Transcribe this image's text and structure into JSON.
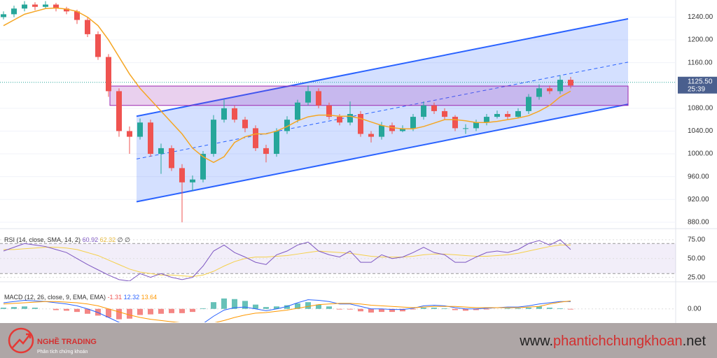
{
  "chart_data": {
    "type": "candlestick",
    "ylim": [
      870,
      1270
    ],
    "yticks": [
      {
        "value": 880,
        "label": "880.00"
      },
      {
        "value": 920,
        "label": "920.00"
      },
      {
        "value": 960,
        "label": "960.00"
      },
      {
        "value": 1000,
        "label": "1000.00"
      },
      {
        "value": 1040,
        "label": "1040.00"
      },
      {
        "value": 1080,
        "label": "1080.00"
      },
      {
        "value": 1160,
        "label": "1160.00"
      },
      {
        "value": 1200,
        "label": "1200.00"
      },
      {
        "value": 1240,
        "label": "1240.00"
      }
    ],
    "colors": {
      "up": "#26a69a",
      "down": "#ef5350"
    },
    "open": [
      1240,
      1245,
      1255,
      1262,
      1258,
      1262,
      1255,
      1250,
      1235,
      1210,
      1170,
      1110,
      1040,
      1030,
      1055,
      1000,
      1010,
      975,
      950,
      955,
      1000,
      1060,
      1080,
      1060,
      1045,
      1010,
      1000,
      1040,
      1060,
      1090,
      1110,
      1085,
      1065,
      1055,
      1070,
      1035,
      1030,
      1050,
      1040,
      1045,
      1065,
      1085,
      1075,
      1065,
      1045,
      1045,
      1055,
      1065,
      1070,
      1065,
      1075,
      1100,
      1115,
      1110,
      1130
    ],
    "high": [
      1250,
      1260,
      1268,
      1266,
      1268,
      1265,
      1258,
      1253,
      1240,
      1215,
      1175,
      1115,
      1048,
      1062,
      1060,
      1018,
      1015,
      982,
      962,
      1005,
      1068,
      1095,
      1085,
      1065,
      1050,
      1016,
      1045,
      1066,
      1095,
      1120,
      1115,
      1090,
      1070,
      1092,
      1075,
      1040,
      1056,
      1055,
      1050,
      1070,
      1092,
      1090,
      1080,
      1068,
      1052,
      1060,
      1070,
      1076,
      1075,
      1080,
      1105,
      1122,
      1120,
      1138,
      1135
    ],
    "low": [
      1236,
      1240,
      1250,
      1252,
      1254,
      1250,
      1245,
      1228,
      1205,
      1165,
      1100,
      1030,
      1000,
      1025,
      995,
      965,
      970,
      880,
      935,
      950,
      995,
      1055,
      1055,
      1038,
      1005,
      985,
      995,
      1035,
      1055,
      1085,
      1080,
      1060,
      1050,
      1050,
      1030,
      1020,
      1025,
      1035,
      1038,
      1040,
      1060,
      1070,
      1060,
      1040,
      1035,
      1040,
      1050,
      1062,
      1060,
      1062,
      1070,
      1095,
      1105,
      1105,
      1115
    ],
    "close": [
      1245,
      1255,
      1262,
      1258,
      1262,
      1255,
      1250,
      1235,
      1210,
      1170,
      1110,
      1040,
      1030,
      1055,
      1000,
      1010,
      975,
      950,
      955,
      1000,
      1060,
      1080,
      1060,
      1045,
      1010,
      1000,
      1040,
      1060,
      1090,
      1110,
      1085,
      1065,
      1055,
      1070,
      1035,
      1030,
      1050,
      1040,
      1045,
      1065,
      1085,
      1075,
      1065,
      1045,
      1045,
      1055,
      1065,
      1070,
      1065,
      1075,
      1100,
      1115,
      1110,
      1130,
      1120
    ],
    "ma": {
      "color": "#f5a623",
      "values": [
        1225,
        1235,
        1245,
        1250,
        1255,
        1256,
        1254,
        1250,
        1240,
        1225,
        1200,
        1170,
        1140,
        1115,
        1095,
        1075,
        1055,
        1035,
        1010,
        995,
        985,
        995,
        1020,
        1030,
        1035,
        1035,
        1040,
        1048,
        1058,
        1065,
        1068,
        1068,
        1066,
        1066,
        1062,
        1056,
        1050,
        1046,
        1044,
        1044,
        1048,
        1054,
        1060,
        1060,
        1058,
        1055,
        1055,
        1057,
        1060,
        1063,
        1067,
        1075,
        1085,
        1100,
        1110
      ]
    },
    "channel": {
      "upper": [
        1066,
        1237
      ],
      "middle": [
        991,
        1161
      ],
      "lower": [
        916,
        1087
      ],
      "color": "#2962ff"
    },
    "zone": [
      1085,
      1119
    ],
    "last_price": {
      "value": 1125.5,
      "label": "1125.50",
      "countdown": "25:39"
    },
    "rsi": {
      "title": "RSI (14, close, SMA, 14, 2)",
      "readouts": [
        60.92,
        62.32,
        "∅",
        "∅"
      ],
      "ylim": [
        20,
        87
      ],
      "yticks": [
        {
          "value": 75,
          "label": "75.00"
        },
        {
          "value": 50,
          "label": "50.00"
        },
        {
          "value": 25,
          "label": "25.00"
        }
      ],
      "band": [
        30,
        70
      ],
      "color": "#7e57c2",
      "sma_color": "#f5d04a",
      "values": [
        60,
        65,
        70,
        68,
        66,
        62,
        58,
        50,
        42,
        35,
        28,
        22,
        20,
        30,
        25,
        30,
        25,
        22,
        25,
        40,
        60,
        68,
        58,
        52,
        45,
        42,
        55,
        60,
        68,
        72,
        60,
        55,
        52,
        60,
        45,
        45,
        55,
        50,
        52,
        58,
        65,
        58,
        55,
        45,
        45,
        52,
        58,
        60,
        58,
        62,
        70,
        74,
        68,
        75,
        62
      ],
      "sma": [
        62,
        62,
        63,
        64,
        65,
        65,
        64,
        62,
        58,
        54,
        48,
        42,
        36,
        32,
        30,
        28,
        28,
        27,
        26,
        28,
        33,
        40,
        46,
        50,
        52,
        52,
        53,
        54,
        56,
        58,
        60,
        59,
        58,
        57,
        55,
        53,
        52,
        52,
        52,
        53,
        55,
        56,
        56,
        55,
        54,
        53,
        53,
        54,
        55,
        57,
        60,
        63,
        66,
        68,
        68
      ]
    },
    "macd": {
      "title": "MACD (12, 26, close, 9, EMA, EMA)",
      "readouts": [
        -1.31,
        12.32,
        13.64
      ],
      "ylim": [
        -22,
        42
      ],
      "yticks": [
        {
          "value": 0,
          "label": "0.00"
        }
      ],
      "color": "#2962ff",
      "signal_color": "#ff9800",
      "macd": [
        10,
        12,
        14,
        13,
        12,
        10,
        8,
        5,
        0,
        -6,
        -14,
        -22,
        -26,
        -24,
        -26,
        -27,
        -28,
        -30,
        -30,
        -24,
        -12,
        -2,
        2,
        3,
        0,
        -3,
        0,
        4,
        10,
        15,
        14,
        12,
        8,
        8,
        4,
        0,
        0,
        -1,
        -1,
        1,
        5,
        6,
        5,
        2,
        0,
        0,
        1,
        2,
        3,
        3,
        5,
        8,
        10,
        12,
        12
      ],
      "signal": [
        8,
        9,
        10,
        11,
        12,
        12,
        11,
        10,
        8,
        5,
        0,
        -5,
        -10,
        -14,
        -17,
        -19,
        -21,
        -23,
        -25,
        -25,
        -23,
        -19,
        -14,
        -10,
        -7,
        -6,
        -4,
        -2,
        1,
        4,
        7,
        8,
        9,
        9,
        8,
        6,
        5,
        4,
        3,
        2,
        3,
        4,
        4,
        4,
        3,
        2,
        2,
        2,
        2,
        2,
        3,
        4,
        8,
        11,
        13
      ],
      "hist": [
        2,
        3,
        4,
        2,
        0,
        -2,
        -3,
        -5,
        -8,
        -11,
        -14,
        -17,
        -16,
        -10,
        -9,
        -8,
        -7,
        -7,
        -5,
        1,
        11,
        17,
        16,
        13,
        7,
        3,
        4,
        6,
        9,
        11,
        7,
        4,
        -1,
        -1,
        -4,
        -6,
        -5,
        -5,
        -4,
        -1,
        2,
        2,
        1,
        -2,
        -3,
        -2,
        -1,
        0,
        1,
        1,
        2,
        4,
        2,
        1,
        -1
      ]
    }
  },
  "footer": {
    "brand": "NGHỀ TRADING",
    "tagline": "Phân tích chứng khoán",
    "site": [
      "www.",
      "phantichchungkhoan",
      ".net"
    ]
  }
}
